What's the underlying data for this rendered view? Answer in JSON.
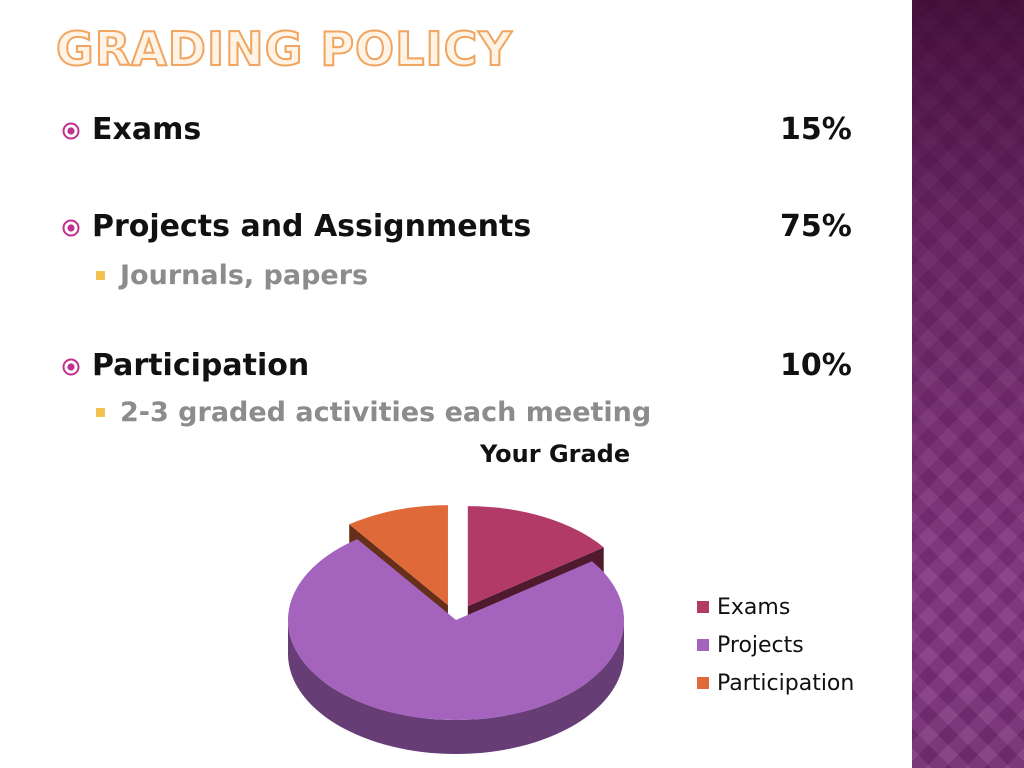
{
  "slide": {
    "title": "Grading Policy",
    "bullets": [
      {
        "label": "Exams",
        "value": "15%",
        "sub": ""
      },
      {
        "label": "Projects and Assignments",
        "value": "75%",
        "sub": "Journals, papers"
      },
      {
        "label": "Participation",
        "value": "10%",
        "sub": "2-3 graded activities each meeting"
      }
    ]
  },
  "colors": {
    "bullet_accent": "#c0308e",
    "sub_bullet": "#f2c14e",
    "side_band": "#7a2f78"
  },
  "chart_data": {
    "type": "pie",
    "title": "Your Grade",
    "categories": [
      "Exams",
      "Projects",
      "Participation"
    ],
    "values": [
      15,
      75,
      10
    ],
    "colors": [
      "#b23a67",
      "#a463bd",
      "#e0693a"
    ],
    "exploded": true,
    "three_d": true,
    "legend": "right"
  }
}
